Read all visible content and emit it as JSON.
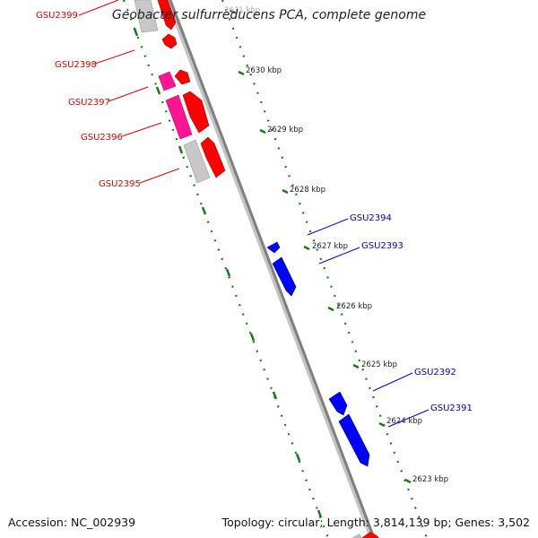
{
  "title": "Geobacter sulfurreducens PCA, complete genome",
  "footer": {
    "accession": "Accession: NC_002939",
    "topology": "Topology: circular; Length: 3,814,139 bp; Genes: 3,502"
  },
  "colors": {
    "forward_cds": "#ff0000",
    "reverse_cds": "#0000ff",
    "forward_label": "#e00000",
    "reverse_label": "#0000cc",
    "rna_magenta": "#ff1493",
    "pseudo_gray": "#c8c8c8",
    "backbone": "#8a8a8a",
    "ticks": "#1a7a1a"
  },
  "ruler": {
    "labels": [
      "2631 kbp",
      "2630 kbp",
      "2629 kbp",
      "2628 kbp",
      "2627 kbp",
      "2626 kbp",
      "2625 kbp",
      "2624 kbp",
      "2623 kbp"
    ]
  },
  "genes": {
    "forward": [
      {
        "name": "GSU2399"
      },
      {
        "name": "GSU2398"
      },
      {
        "name": "GSU2397"
      },
      {
        "name": "GSU2396"
      },
      {
        "name": "GSU2395"
      }
    ],
    "reverse": [
      {
        "name": "GSU2394"
      },
      {
        "name": "GSU2393"
      },
      {
        "name": "GSU2392"
      },
      {
        "name": "GSU2391"
      }
    ]
  }
}
